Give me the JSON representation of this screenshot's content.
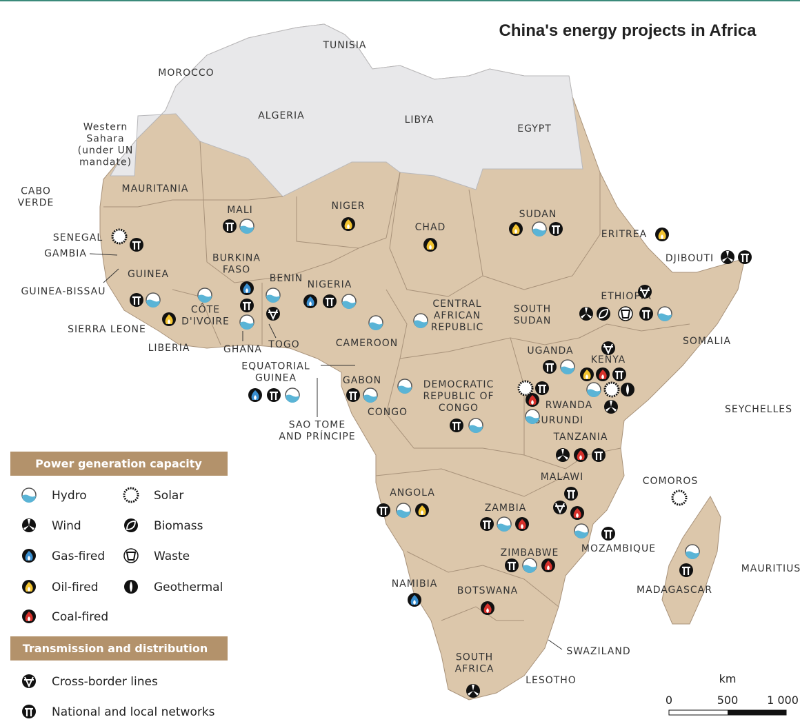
{
  "title": "China's energy projects in Africa",
  "map_labels": [
    "TUNISIA",
    "MOROCCO",
    "ALGERIA",
    "LIBYA",
    "EGYPT",
    "Western\nSahara\n(under UN\nmandate)",
    "CABO\nVERDE",
    "MAURITANIA",
    "MALI",
    "NIGER",
    "CHAD",
    "SUDAN",
    "ERITREA",
    "DJIBOUTI",
    "SENEGAL",
    "GAMBIA",
    "GUINEA-BISSAU",
    "GUINEA",
    "BURKINA\nFASO",
    "BENIN",
    "NIGERIA",
    "SIERRA LEONE",
    "CÔTE\nD'IVOIRE",
    "LIBERIA",
    "GHANA",
    "TOGO",
    "CENTRAL\nAFRICAN\nREPUBLIC",
    "SOUTH\nSUDAN",
    "ETHIOPIA",
    "SOMALIA",
    "CAMEROON",
    "UGANDA",
    "KENYA",
    "EQUATORIAL\nGUINEA",
    "GABON",
    "DEMOCRATIC\nREPUBLIC OF\nCONGO",
    "RWANDA",
    "CONGO",
    "BURUNDI",
    "SEYCHELLES",
    "SAO TOME\nAND PRÍNCIPE",
    "TANZANIA",
    "MALAWI",
    "COMOROS",
    "ANGOLA",
    "ZAMBIA",
    "MOZAMBIQUE",
    "ZIMBABWE",
    "MAURITIUS",
    "MADAGASCAR",
    "NAMIBIA",
    "BOTSWANA",
    "SWAZILAND",
    "SOUTH\nAFRICA",
    "LESOTHO"
  ],
  "legend": {
    "power_heading": "Power generation capacity",
    "power_items": [
      "Hydro",
      "Wind",
      "Gas-fired",
      "Oil-fired",
      "Coal-fired",
      "Solar",
      "Biomass",
      "Waste",
      "Geothermal"
    ],
    "transmission_heading": "Transmission and distribution",
    "transmission_items": [
      "Cross-border lines",
      "National and local networks"
    ]
  },
  "scale": {
    "unit": "km",
    "ticks": [
      "0",
      "500",
      "1 000"
    ]
  }
}
